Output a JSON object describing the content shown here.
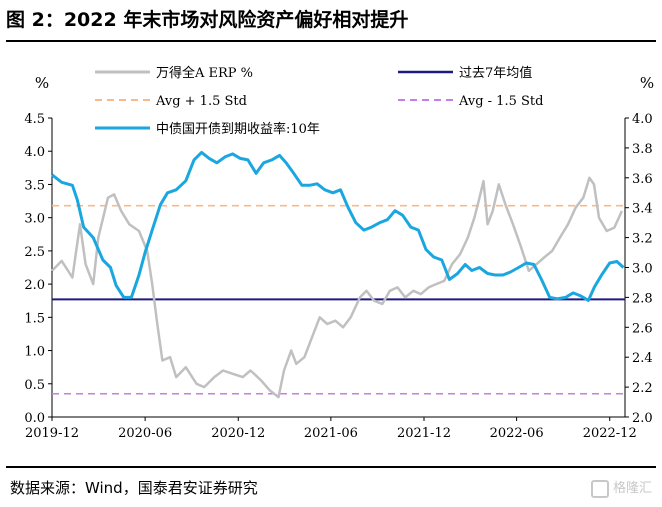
{
  "title": "图 2：2022 年末市场对风险资产偏好相对提升",
  "source": "数据来源：Wind，国泰君安证券研究",
  "watermark": "格隆汇",
  "chart_data": {
    "type": "line",
    "left_unit": "%",
    "right_unit": "%",
    "left_ylim": [
      0,
      4.5
    ],
    "right_ylim": [
      2.0,
      4.0
    ],
    "left_ticks": [
      "0.0",
      "0.5",
      "1.0",
      "1.5",
      "2.0",
      "2.5",
      "3.0",
      "3.5",
      "4.0",
      "4.5"
    ],
    "right_ticks": [
      "2.0",
      "2.2",
      "2.4",
      "2.6",
      "2.8",
      "3.0",
      "3.2",
      "3.4",
      "3.6",
      "3.8",
      "4.0"
    ],
    "x_ticks": [
      "2019-12",
      "2020-06",
      "2020-12",
      "2021-06",
      "2021-12",
      "2022-06",
      "2022-12"
    ],
    "x_range": [
      "2019-12-01",
      "2022-12-31"
    ],
    "grid": false,
    "colors": {
      "erp": "#c0c0c0",
      "avg": "#1f1a80",
      "avg_plus": "#f7b98a",
      "avg_minus": "#c77ee8",
      "cgb": "#1aa7e0"
    },
    "legend": [
      "万得全A ERP %",
      "过去7年均值",
      "Avg + 1.5 Std",
      "Avg - 1.5 Std",
      "中债国开债到期收益率:10年"
    ],
    "reference_lines": [
      {
        "name": "过去7年均值",
        "axis": "left",
        "value": 1.77
      },
      {
        "name": "Avg + 1.5 Std",
        "axis": "left",
        "value": 3.18
      },
      {
        "name": "Avg - 1.5 Std",
        "axis": "left",
        "value": 0.35
      }
    ],
    "series": [
      {
        "name": "万得全A ERP %",
        "axis": "left",
        "points": [
          [
            "2019-12-01",
            2.2
          ],
          [
            "2019-12-20",
            2.35
          ],
          [
            "2020-01-10",
            2.1
          ],
          [
            "2020-01-25",
            2.9
          ],
          [
            "2020-02-05",
            2.3
          ],
          [
            "2020-02-20",
            2.0
          ],
          [
            "2020-03-01",
            2.7
          ],
          [
            "2020-03-20",
            3.3
          ],
          [
            "2020-04-01",
            3.35
          ],
          [
            "2020-04-15",
            3.1
          ],
          [
            "2020-05-01",
            2.9
          ],
          [
            "2020-05-20",
            2.8
          ],
          [
            "2020-06-05",
            2.5
          ],
          [
            "2020-06-15",
            2.0
          ],
          [
            "2020-06-25",
            1.4
          ],
          [
            "2020-07-05",
            0.85
          ],
          [
            "2020-07-20",
            0.9
          ],
          [
            "2020-08-01",
            0.6
          ],
          [
            "2020-08-20",
            0.75
          ],
          [
            "2020-09-10",
            0.5
          ],
          [
            "2020-09-25",
            0.45
          ],
          [
            "2020-10-15",
            0.6
          ],
          [
            "2020-11-01",
            0.7
          ],
          [
            "2020-11-20",
            0.65
          ],
          [
            "2020-12-10",
            0.6
          ],
          [
            "2020-12-25",
            0.7
          ],
          [
            "2021-01-15",
            0.55
          ],
          [
            "2021-02-01",
            0.4
          ],
          [
            "2021-02-18",
            0.3
          ],
          [
            "2021-03-01",
            0.7
          ],
          [
            "2021-03-15",
            1.0
          ],
          [
            "2021-03-25",
            0.8
          ],
          [
            "2021-04-10",
            0.9
          ],
          [
            "2021-04-25",
            1.2
          ],
          [
            "2021-05-10",
            1.5
          ],
          [
            "2021-05-25",
            1.4
          ],
          [
            "2021-06-10",
            1.45
          ],
          [
            "2021-06-25",
            1.35
          ],
          [
            "2021-07-10",
            1.5
          ],
          [
            "2021-07-28",
            1.8
          ],
          [
            "2021-08-10",
            1.9
          ],
          [
            "2021-08-25",
            1.75
          ],
          [
            "2021-09-10",
            1.7
          ],
          [
            "2021-09-25",
            1.9
          ],
          [
            "2021-10-10",
            1.95
          ],
          [
            "2021-10-25",
            1.8
          ],
          [
            "2021-11-10",
            1.9
          ],
          [
            "2021-11-25",
            1.85
          ],
          [
            "2021-12-10",
            1.95
          ],
          [
            "2021-12-25",
            2.0
          ],
          [
            "2022-01-10",
            2.05
          ],
          [
            "2022-01-25",
            2.3
          ],
          [
            "2022-02-10",
            2.45
          ],
          [
            "2022-02-25",
            2.7
          ],
          [
            "2022-03-10",
            3.0
          ],
          [
            "2022-03-20",
            3.3
          ],
          [
            "2022-03-28",
            3.55
          ],
          [
            "2022-04-05",
            2.9
          ],
          [
            "2022-04-15",
            3.1
          ],
          [
            "2022-04-27",
            3.5
          ],
          [
            "2022-05-10",
            3.2
          ],
          [
            "2022-05-25",
            2.9
          ],
          [
            "2022-06-10",
            2.55
          ],
          [
            "2022-06-25",
            2.2
          ],
          [
            "2022-07-10",
            2.3
          ],
          [
            "2022-07-25",
            2.4
          ],
          [
            "2022-08-10",
            2.5
          ],
          [
            "2022-08-25",
            2.7
          ],
          [
            "2022-09-10",
            2.9
          ],
          [
            "2022-09-25",
            3.15
          ],
          [
            "2022-10-10",
            3.3
          ],
          [
            "2022-10-22",
            3.6
          ],
          [
            "2022-10-31",
            3.5
          ],
          [
            "2022-11-10",
            3.0
          ],
          [
            "2022-11-25",
            2.8
          ],
          [
            "2022-12-10",
            2.85
          ],
          [
            "2022-12-25",
            3.1
          ]
        ]
      },
      {
        "name": "中债国开债到期收益率:10年",
        "axis": "right",
        "points": [
          [
            "2019-12-01",
            3.62
          ],
          [
            "2019-12-20",
            3.57
          ],
          [
            "2020-01-10",
            3.55
          ],
          [
            "2020-01-20",
            3.45
          ],
          [
            "2020-02-01",
            3.27
          ],
          [
            "2020-02-20",
            3.2
          ],
          [
            "2020-03-10",
            3.05
          ],
          [
            "2020-03-25",
            3.0
          ],
          [
            "2020-04-05",
            2.88
          ],
          [
            "2020-04-20",
            2.8
          ],
          [
            "2020-05-05",
            2.8
          ],
          [
            "2020-05-20",
            2.95
          ],
          [
            "2020-06-01",
            3.1
          ],
          [
            "2020-06-15",
            3.25
          ],
          [
            "2020-07-01",
            3.42
          ],
          [
            "2020-07-15",
            3.5
          ],
          [
            "2020-08-01",
            3.52
          ],
          [
            "2020-08-20",
            3.58
          ],
          [
            "2020-09-05",
            3.72
          ],
          [
            "2020-09-20",
            3.77
          ],
          [
            "2020-10-05",
            3.73
          ],
          [
            "2020-10-20",
            3.7
          ],
          [
            "2020-11-05",
            3.74
          ],
          [
            "2020-11-20",
            3.76
          ],
          [
            "2020-12-05",
            3.73
          ],
          [
            "2020-12-20",
            3.72
          ],
          [
            "2021-01-05",
            3.63
          ],
          [
            "2021-01-20",
            3.7
          ],
          [
            "2021-02-05",
            3.72
          ],
          [
            "2021-02-20",
            3.75
          ],
          [
            "2021-03-05",
            3.7
          ],
          [
            "2021-03-20",
            3.63
          ],
          [
            "2021-04-05",
            3.55
          ],
          [
            "2021-04-20",
            3.55
          ],
          [
            "2021-05-05",
            3.56
          ],
          [
            "2021-05-20",
            3.52
          ],
          [
            "2021-06-05",
            3.5
          ],
          [
            "2021-06-20",
            3.52
          ],
          [
            "2021-07-05",
            3.4
          ],
          [
            "2021-07-20",
            3.3
          ],
          [
            "2021-08-05",
            3.25
          ],
          [
            "2021-08-20",
            3.27
          ],
          [
            "2021-09-05",
            3.3
          ],
          [
            "2021-09-20",
            3.32
          ],
          [
            "2021-10-05",
            3.38
          ],
          [
            "2021-10-20",
            3.35
          ],
          [
            "2021-11-05",
            3.27
          ],
          [
            "2021-11-20",
            3.25
          ],
          [
            "2021-12-05",
            3.12
          ],
          [
            "2021-12-20",
            3.07
          ],
          [
            "2022-01-05",
            3.05
          ],
          [
            "2022-01-20",
            2.92
          ],
          [
            "2022-02-05",
            2.96
          ],
          [
            "2022-02-20",
            3.02
          ],
          [
            "2022-03-05",
            2.98
          ],
          [
            "2022-03-20",
            3.0
          ],
          [
            "2022-04-05",
            2.96
          ],
          [
            "2022-04-20",
            2.95
          ],
          [
            "2022-05-05",
            2.95
          ],
          [
            "2022-05-20",
            2.97
          ],
          [
            "2022-06-05",
            3.0
          ],
          [
            "2022-06-20",
            3.03
          ],
          [
            "2022-07-05",
            3.02
          ],
          [
            "2022-07-20",
            2.92
          ],
          [
            "2022-08-05",
            2.8
          ],
          [
            "2022-08-20",
            2.79
          ],
          [
            "2022-09-05",
            2.8
          ],
          [
            "2022-09-20",
            2.83
          ],
          [
            "2022-10-05",
            2.81
          ],
          [
            "2022-10-20",
            2.78
          ],
          [
            "2022-11-01",
            2.87
          ],
          [
            "2022-11-15",
            2.95
          ],
          [
            "2022-12-01",
            3.03
          ],
          [
            "2022-12-15",
            3.04
          ],
          [
            "2022-12-28",
            3.0
          ]
        ]
      }
    ]
  }
}
